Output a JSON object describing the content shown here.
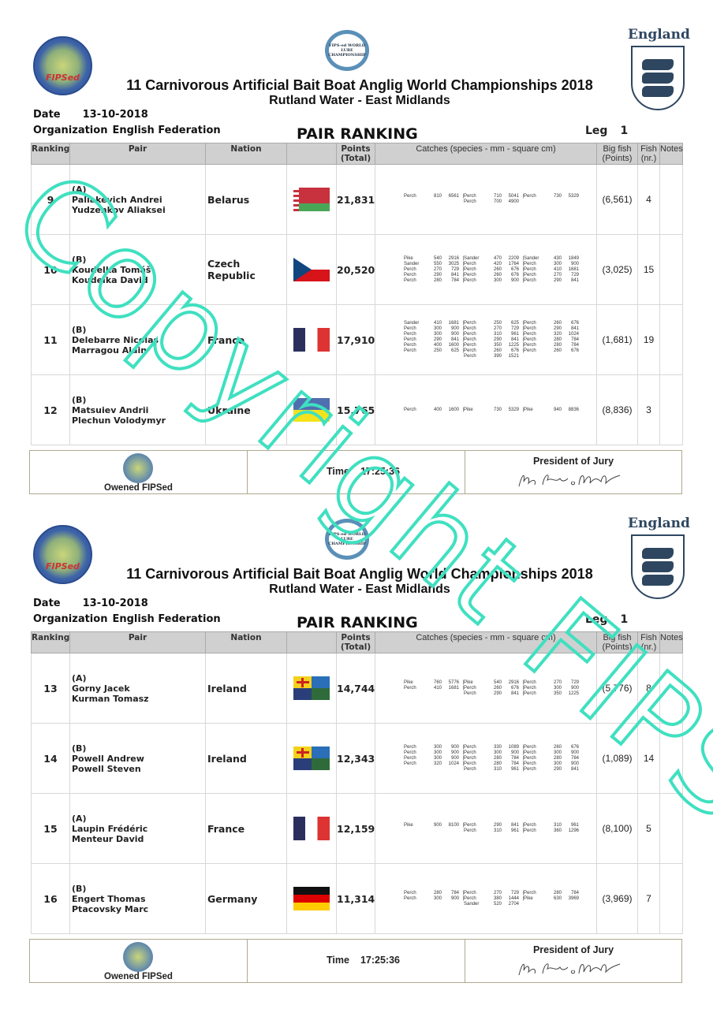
{
  "pages": [
    {
      "logos": {
        "left_text": "FIPSed",
        "center_text": "FIPS-ed WORLD LURE CHAMPIONSHIP",
        "right_label": "England"
      },
      "title": "11 Carnivorous Artificial Bait Boat Anglig World Championships 2018",
      "subtitle": "Rutland Water - East Midlands",
      "date_label": "Date",
      "date": "13-10-2018",
      "org_label": "Organization",
      "org": "English Federation",
      "heading": "PAIR RANKING",
      "leg_label": "Leg",
      "leg": "1",
      "columns": [
        "Ranking",
        "Pair",
        "Nation",
        "",
        "Points (Total)",
        "Catches (species - mm - square cm)",
        "Big fish (Points)",
        "Fish (nr.)",
        "Notes"
      ],
      "rows": [
        {
          "rank": "9",
          "group": "(A)",
          "angler1": "Paliakevich Andrei",
          "angler2": "Yudzenkov Aliaksei",
          "nation": "Belarus",
          "flag": "belarus",
          "points": "21,831",
          "big_fish": "(6,561)",
          "fish": "4",
          "notes": "",
          "catches": [
            [
              [
                "Perch",
                "810",
                "6561"
              ],
              [
                "Perch",
                "710",
                "5041"
              ],
              [
                "Perch",
                "730",
                "5329"
              ]
            ],
            [
              null,
              [
                "Perch",
                "700",
                "4900"
              ],
              null
            ]
          ]
        },
        {
          "rank": "10",
          "group": "(B)",
          "angler1": "Koudelka Tomáš",
          "angler2": "Koudelka David",
          "nation": "Czech Republic",
          "flag": "czech",
          "points": "20,520",
          "big_fish": "(3,025)",
          "fish": "15",
          "notes": "",
          "catches": [
            [
              [
                "Pike",
                "540",
                "2916"
              ],
              [
                "Sander",
                "470",
                "2209"
              ],
              [
                "Sander",
                "430",
                "1849"
              ]
            ],
            [
              [
                "Sander",
                "550",
                "3025"
              ],
              [
                "Perch",
                "420",
                "1764"
              ],
              [
                "Perch",
                "300",
                "900"
              ]
            ],
            [
              [
                "Perch",
                "270",
                "729"
              ],
              [
                "Perch",
                "260",
                "676"
              ],
              [
                "Perch",
                "410",
                "1681"
              ]
            ],
            [
              [
                "Perch",
                "290",
                "841"
              ],
              [
                "Perch",
                "260",
                "676"
              ],
              [
                "Perch",
                "270",
                "729"
              ]
            ],
            [
              [
                "Perch",
                "280",
                "784"
              ],
              [
                "Perch",
                "300",
                "900"
              ],
              [
                "Perch",
                "290",
                "841"
              ]
            ]
          ]
        },
        {
          "rank": "11",
          "group": "(B)",
          "angler1": "Delebarre Nicolas",
          "angler2": "Marragou Alain",
          "nation": "France",
          "flag": "france",
          "points": "17,910",
          "big_fish": "(1,681)",
          "fish": "19",
          "notes": "",
          "catches": [
            [
              [
                "Sander",
                "410",
                "1681"
              ],
              [
                "Perch",
                "250",
                "625"
              ],
              [
                "Perch",
                "260",
                "676"
              ]
            ],
            [
              [
                "Perch",
                "300",
                "900"
              ],
              [
                "Perch",
                "270",
                "729"
              ],
              [
                "Perch",
                "290",
                "841"
              ]
            ],
            [
              [
                "Perch",
                "300",
                "900"
              ],
              [
                "Perch",
                "310",
                "961"
              ],
              [
                "Perch",
                "320",
                "1024"
              ]
            ],
            [
              [
                "Perch",
                "290",
                "841"
              ],
              [
                "Perch",
                "290",
                "841"
              ],
              [
                "Perch",
                "280",
                "784"
              ]
            ],
            [
              [
                "Perch",
                "400",
                "1600"
              ],
              [
                "Perch",
                "350",
                "1225"
              ],
              [
                "Perch",
                "280",
                "784"
              ]
            ],
            [
              [
                "Perch",
                "250",
                "625"
              ],
              [
                "Perch",
                "260",
                "676"
              ],
              [
                "Perch",
                "260",
                "676"
              ]
            ],
            [
              null,
              [
                "Perch",
                "390",
                "1521"
              ],
              null
            ]
          ]
        },
        {
          "rank": "12",
          "group": "(B)",
          "angler1": "Matsuiev Andrii",
          "angler2": "Plechun Volodymyr",
          "nation": "Ukraine",
          "flag": "ukraine",
          "points": "15,765",
          "big_fish": "(8,836)",
          "fish": "3",
          "notes": "",
          "catches": [
            [
              [
                "Perch",
                "400",
                "1600"
              ],
              [
                "Pike",
                "730",
                "5329"
              ],
              [
                "Pike",
                "940",
                "8836"
              ]
            ]
          ]
        }
      ],
      "footer": {
        "owner": "Owened FIPSed",
        "time_label": "Time",
        "time": "17:25:36",
        "president": "President of Jury"
      }
    },
    {
      "logos": {
        "left_text": "FIPSed",
        "center_text": "FIPS-ed WORLD LURE CHAMPIONSHIP",
        "right_label": "England"
      },
      "title": "11 Carnivorous Artificial Bait Boat Anglig World Championships 2018",
      "subtitle": "Rutland Water - East Midlands",
      "date_label": "Date",
      "date": "13-10-2018",
      "org_label": "Organization",
      "org": "English Federation",
      "heading": "PAIR RANKING",
      "leg_label": "Leg",
      "leg": "1",
      "columns": [
        "Ranking",
        "Pair",
        "Nation",
        "",
        "Points (Total)",
        "Catches (species - mm - square cm)",
        "Big fish (Points)",
        "Fish (nr.)",
        "Notes"
      ],
      "rows": [
        {
          "rank": "13",
          "group": "(A)",
          "angler1": "Gorny Jacek",
          "angler2": "Kurman Tomasz",
          "nation": "Ireland",
          "flag": "ireland",
          "points": "14,744",
          "big_fish": "(5,776)",
          "fish": "8",
          "notes": "",
          "catches": [
            [
              [
                "Pike",
                "760",
                "5776"
              ],
              [
                "Pike",
                "540",
                "2916"
              ],
              [
                "Perch",
                "270",
                "729"
              ]
            ],
            [
              [
                "Perch",
                "410",
                "1681"
              ],
              [
                "Perch",
                "260",
                "676"
              ],
              [
                "Perch",
                "300",
                "900"
              ]
            ],
            [
              null,
              [
                "Perch",
                "290",
                "841"
              ],
              [
                "Perch",
                "350",
                "1225"
              ]
            ]
          ]
        },
        {
          "rank": "14",
          "group": "(B)",
          "angler1": "Powell Andrew",
          "angler2": "Powell Steven",
          "nation": "Ireland",
          "flag": "ireland",
          "points": "12,343",
          "big_fish": "(1,089)",
          "fish": "14",
          "notes": "",
          "catches": [
            [
              [
                "Perch",
                "300",
                "900"
              ],
              [
                "Perch",
                "330",
                "1089"
              ],
              [
                "Perch",
                "260",
                "676"
              ]
            ],
            [
              [
                "Perch",
                "300",
                "900"
              ],
              [
                "Perch",
                "300",
                "900"
              ],
              [
                "Perch",
                "300",
                "900"
              ]
            ],
            [
              [
                "Perch",
                "300",
                "900"
              ],
              [
                "Perch",
                "280",
                "784"
              ],
              [
                "Perch",
                "280",
                "784"
              ]
            ],
            [
              [
                "Perch",
                "320",
                "1024"
              ],
              [
                "Perch",
                "280",
                "784"
              ],
              [
                "Perch",
                "300",
                "900"
              ]
            ],
            [
              null,
              [
                "Perch",
                "310",
                "961"
              ],
              [
                "Perch",
                "290",
                "841"
              ]
            ]
          ]
        },
        {
          "rank": "15",
          "group": "(A)",
          "angler1": "Laupin Frédéric",
          "angler2": "Menteur David",
          "nation": "France",
          "flag": "france",
          "points": "12,159",
          "big_fish": "(8,100)",
          "fish": "5",
          "notes": "",
          "catches": [
            [
              [
                "Pike",
                "900",
                "8100"
              ],
              [
                "Perch",
                "290",
                "841"
              ],
              [
                "Perch",
                "310",
                "961"
              ]
            ],
            [
              null,
              [
                "Perch",
                "310",
                "961"
              ],
              [
                "Perch",
                "360",
                "1296"
              ]
            ]
          ]
        },
        {
          "rank": "16",
          "group": "(B)",
          "angler1": "Engert Thomas",
          "angler2": "Ptacovsky Marc",
          "nation": "Germany",
          "flag": "germany",
          "points": "11,314",
          "big_fish": "(3,969)",
          "fish": "7",
          "notes": "",
          "catches": [
            [
              [
                "Perch",
                "280",
                "784"
              ],
              [
                "Perch",
                "270",
                "729"
              ],
              [
                "Perch",
                "280",
                "784"
              ]
            ],
            [
              [
                "Perch",
                "300",
                "900"
              ],
              [
                "Perch",
                "380",
                "1444"
              ],
              [
                "Pike",
                "630",
                "3969"
              ]
            ],
            [
              null,
              [
                "Sander",
                "520",
                "2704"
              ],
              null
            ]
          ]
        }
      ],
      "footer": {
        "owner": "Owened FIPSed",
        "time_label": "Time",
        "time": "17:25:36",
        "president": "President of Jury"
      }
    }
  ],
  "watermark": "Copyright FIPSed",
  "colors": {
    "watermark": "#3fe0c0",
    "header_bg": "#d0d0d0",
    "england_blue": "#2e4660"
  }
}
